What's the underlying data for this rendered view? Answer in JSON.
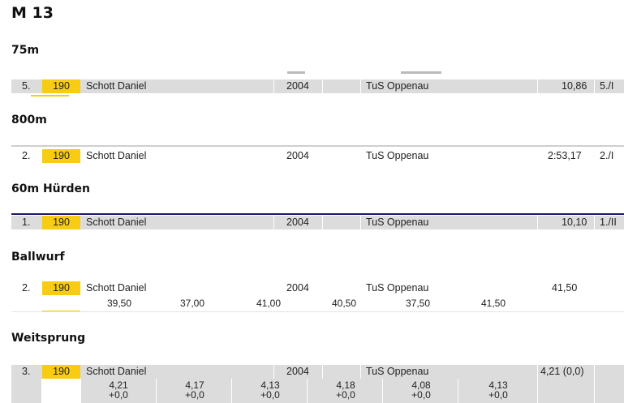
{
  "page_title": "M 13",
  "colors": {
    "highlight": "#f7cc13",
    "row_shade": "#dcdcdc",
    "rule_dark": "#1a1a6e"
  },
  "events": [
    {
      "name": "75m",
      "place": "5.",
      "bib": "190",
      "athlete": "Schott Daniel",
      "year": "2004",
      "club": "TuS Oppenau",
      "result": "10,86",
      "extra": "5./I"
    },
    {
      "name": "800m",
      "place": "2.",
      "bib": "190",
      "athlete": "Schott Daniel",
      "year": "2004",
      "club": "TuS Oppenau",
      "result": "2:53,17",
      "extra": "2./I"
    },
    {
      "name": "60m Hürden",
      "place": "1.",
      "bib": "190",
      "athlete": "Schott Daniel",
      "year": "2004",
      "club": "TuS Oppenau",
      "result": "10,10",
      "extra": "1./II"
    },
    {
      "name": "Ballwurf",
      "place": "2.",
      "bib": "190",
      "athlete": "Schott Daniel",
      "year": "2004",
      "club": "TuS Oppenau",
      "result": "41,50",
      "attempts": [
        "39,50",
        "37,00",
        "41,00",
        "40,50",
        "37,50",
        "41,50"
      ]
    },
    {
      "name": "Weitsprung",
      "place": "3.",
      "bib": "190",
      "athlete": "Schott Daniel",
      "year": "2004",
      "club": "TuS Oppenau",
      "result": "4,21 (0,0)",
      "attempts": [
        {
          "dist": "4,21",
          "wind": "+0,0"
        },
        {
          "dist": "4,17",
          "wind": "+0,0"
        },
        {
          "dist": "4,13",
          "wind": "+0,0"
        },
        {
          "dist": "4,18",
          "wind": "+0,0"
        },
        {
          "dist": "4,08",
          "wind": "+0,0"
        },
        {
          "dist": "4,13",
          "wind": "+0,0"
        }
      ]
    }
  ]
}
